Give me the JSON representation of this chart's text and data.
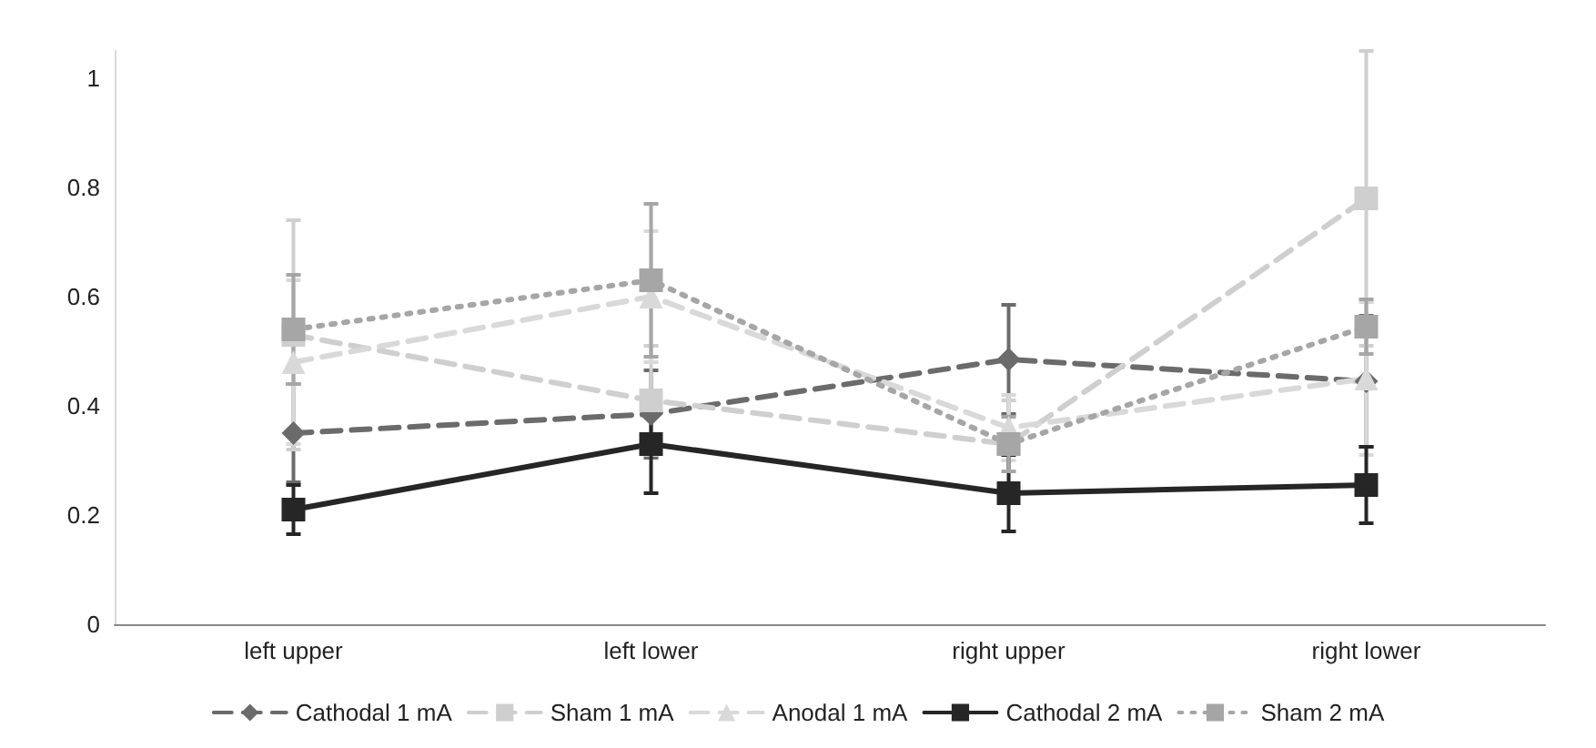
{
  "chart_data": {
    "type": "line",
    "categories": [
      "left upper",
      "left lower",
      "right upper",
      "right lower"
    ],
    "series": [
      {
        "name": "Cathodal 1 mA",
        "color": "#6b6b6b",
        "marker": "diamond",
        "line_style": "dashed",
        "values": [
          0.35,
          0.385,
          0.485,
          0.445
        ],
        "errors": [
          0.09,
          0.08,
          0.1,
          0.12
        ]
      },
      {
        "name": "Sham 1 mA",
        "color": "#cfcfcf",
        "marker": "square",
        "line_style": "dashed",
        "values": [
          0.53,
          0.41,
          0.33,
          0.78
        ],
        "errors": [
          0.21,
          0.1,
          0.08,
          0.27
        ]
      },
      {
        "name": "Anodal 1 mA",
        "color": "#d9d9d9",
        "marker": "triangle",
        "line_style": "dashed",
        "values": [
          0.48,
          0.6,
          0.36,
          0.45
        ],
        "errors": [
          0.15,
          0.12,
          0.06,
          0.14
        ]
      },
      {
        "name": "Cathodal 2 mA",
        "color": "#262626",
        "marker": "square",
        "line_style": "solid",
        "values": [
          0.21,
          0.33,
          0.24,
          0.255
        ],
        "errors": [
          0.045,
          0.09,
          0.07,
          0.07
        ]
      },
      {
        "name": "Sham 2 mA",
        "color": "#a6a6a6",
        "marker": "square",
        "line_style": "dotted",
        "values": [
          0.54,
          0.63,
          0.33,
          0.545
        ],
        "errors": [
          0.1,
          0.14,
          0.05,
          0.05
        ]
      }
    ],
    "ylim": [
      0,
      1.05
    ],
    "yticks": [
      0,
      0.2,
      0.4,
      0.6,
      0.8,
      1
    ],
    "grid": false,
    "legend": "bottom"
  }
}
